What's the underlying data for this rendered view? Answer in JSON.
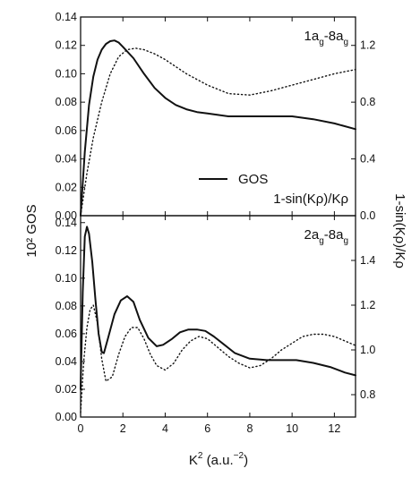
{
  "chart_data": [
    {
      "type": "line",
      "panel_label": {
        "main": "1a",
        "sub1": "g",
        "mid": "-8a",
        "sub2": "g"
      },
      "xlim": [
        0,
        13
      ],
      "x_ticks": [
        "0",
        "2",
        "4",
        "6",
        "8",
        "10",
        "12"
      ],
      "left_axis": {
        "label": "10² GOS",
        "ylim": [
          0,
          0.14
        ],
        "ticks": [
          "0.00",
          "0.02",
          "0.04",
          "0.06",
          "0.08",
          "0.10",
          "0.12",
          "0.14"
        ]
      },
      "right_axis": {
        "label": "1-sin(Kρ)/Kρ",
        "ylim": [
          0,
          1.4
        ],
        "ticks": [
          "0.0",
          "0.4",
          "0.8",
          "1.2"
        ]
      },
      "legend": {
        "placement": "lower-right",
        "entries": [
          {
            "label": "GOS",
            "style": "solid"
          },
          {
            "label": "1-sin(Kρ)/Kρ",
            "style": "dotted"
          }
        ]
      },
      "series": [
        {
          "axis": "left",
          "style": "solid",
          "x": [
            0,
            0.2,
            0.4,
            0.6,
            0.8,
            1.0,
            1.2,
            1.4,
            1.6,
            1.8,
            2.0,
            2.5,
            3.0,
            3.5,
            4.0,
            4.5,
            5.0,
            5.5,
            6.0,
            7.0,
            8.0,
            9.0,
            10.0,
            11.0,
            12.0,
            13.0
          ],
          "y": [
            0.0,
            0.045,
            0.078,
            0.098,
            0.11,
            0.117,
            0.121,
            0.123,
            0.1235,
            0.122,
            0.119,
            0.111,
            0.1,
            0.09,
            0.083,
            0.078,
            0.075,
            0.073,
            0.072,
            0.07,
            0.07,
            0.07,
            0.07,
            0.068,
            0.065,
            0.061
          ]
        },
        {
          "axis": "right",
          "style": "dotted",
          "x": [
            0,
            0.3,
            0.6,
            1.0,
            1.4,
            1.8,
            2.2,
            2.6,
            3.0,
            3.5,
            4.0,
            5.0,
            6.0,
            7.0,
            8.0,
            9.0,
            10.0,
            11.0,
            12.0,
            13.0
          ],
          "y": [
            0.0,
            0.3,
            0.55,
            0.8,
            1.0,
            1.12,
            1.17,
            1.18,
            1.17,
            1.14,
            1.1,
            1.0,
            0.92,
            0.86,
            0.85,
            0.88,
            0.92,
            0.96,
            1.0,
            1.03
          ]
        }
      ]
    },
    {
      "type": "line",
      "panel_label": {
        "main": "2a",
        "sub1": "g",
        "mid": "-8a",
        "sub2": "g"
      },
      "xlim": [
        0,
        13
      ],
      "xlabel_main": "K",
      "xlabel_sup1": "2",
      "xlabel_mid": " (a.u.",
      "xlabel_sup2": "−2",
      "xlabel_end": ")",
      "x_ticks": [
        "0",
        "2",
        "4",
        "6",
        "8",
        "10",
        "12"
      ],
      "left_axis": {
        "label": "10² GOS",
        "ylim": [
          0,
          0.145
        ],
        "ticks": [
          "0.00",
          "0.02",
          "0.04",
          "0.06",
          "0.08",
          "0.10",
          "0.12",
          "0.14"
        ]
      },
      "right_axis": {
        "label": "1-sin(Kρ)/Kρ",
        "ylim": [
          0.7,
          1.6
        ],
        "ticks": [
          "0.8",
          "1.0",
          "1.2",
          "1.4"
        ]
      },
      "series": [
        {
          "axis": "left",
          "style": "solid",
          "x": [
            0,
            0.1,
            0.2,
            0.3,
            0.4,
            0.55,
            0.7,
            0.85,
            1.0,
            1.1,
            1.3,
            1.6,
            1.9,
            2.2,
            2.5,
            2.8,
            3.2,
            3.6,
            3.9,
            4.3,
            4.7,
            5.1,
            5.5,
            5.9,
            6.3,
            6.8,
            7.3,
            8.0,
            8.8,
            9.5,
            10.2,
            11.0,
            11.8,
            12.5,
            13.0
          ],
          "y": [
            0.02,
            0.09,
            0.13,
            0.137,
            0.132,
            0.112,
            0.085,
            0.06,
            0.047,
            0.046,
            0.057,
            0.074,
            0.084,
            0.087,
            0.083,
            0.07,
            0.057,
            0.051,
            0.052,
            0.056,
            0.061,
            0.063,
            0.063,
            0.062,
            0.058,
            0.052,
            0.046,
            0.042,
            0.041,
            0.041,
            0.041,
            0.039,
            0.036,
            0.032,
            0.03
          ]
        },
        {
          "axis": "right",
          "style": "dotted",
          "x": [
            0,
            0.15,
            0.3,
            0.45,
            0.6,
            0.8,
            1.0,
            1.2,
            1.5,
            1.8,
            2.1,
            2.4,
            2.7,
            3.0,
            3.3,
            3.6,
            4.0,
            4.4,
            4.8,
            5.2,
            5.6,
            6.0,
            6.5,
            7.0,
            7.5,
            8.0,
            8.5,
            9.0,
            9.5,
            10.0,
            10.5,
            11.0,
            11.5,
            12.0,
            12.5,
            13.0
          ],
          "y": [
            0.72,
            0.95,
            1.1,
            1.18,
            1.2,
            1.12,
            0.96,
            0.86,
            0.88,
            0.98,
            1.06,
            1.1,
            1.1,
            1.05,
            0.98,
            0.93,
            0.91,
            0.94,
            1.0,
            1.04,
            1.06,
            1.05,
            1.01,
            0.97,
            0.94,
            0.92,
            0.93,
            0.96,
            1.0,
            1.03,
            1.06,
            1.07,
            1.07,
            1.06,
            1.04,
            1.02
          ]
        }
      ]
    }
  ]
}
